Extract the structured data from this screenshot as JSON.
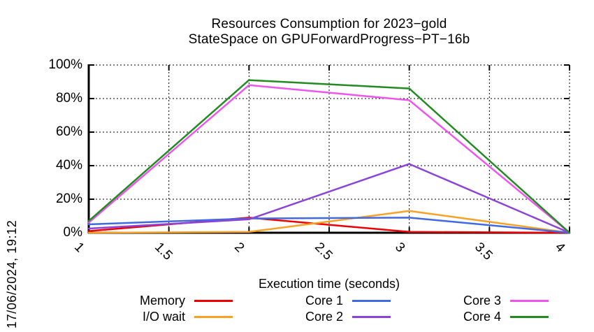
{
  "timestamp": "17/06/2024, 19:12",
  "title": {
    "line1": "Resources Consumption for 2023−gold",
    "line2": "StateSpace on GPUForwardProgress−PT−16b"
  },
  "chart_data": {
    "type": "line",
    "title": "Resources Consumption for 2023−gold StateSpace on GPUForwardProgress−PT−16b",
    "xlabel": "Execution time (seconds)",
    "ylabel": "",
    "xlim": [
      1,
      4
    ],
    "ylim": [
      0,
      100
    ],
    "grid": true,
    "legend_position": "bottom",
    "x": [
      1,
      2,
      3,
      4
    ],
    "x_ticks": [
      1,
      1.5,
      2,
      2.5,
      3,
      3.5,
      4
    ],
    "x_tick_labels": [
      "1",
      "1.5",
      "2",
      "2.5",
      "3",
      "3.5",
      "4"
    ],
    "y_ticks": [
      0,
      20,
      40,
      60,
      80,
      100
    ],
    "y_tick_labels": [
      "0%",
      "20%",
      "40%",
      "60%",
      "80%",
      "100%"
    ],
    "series": [
      {
        "name": "Memory",
        "color": "#ee0000",
        "values": [
          1,
          9,
          0.5,
          0
        ]
      },
      {
        "name": "I/O wait",
        "color": "#f7a227",
        "values": [
          0,
          0.5,
          13,
          0
        ]
      },
      {
        "name": "Core 1",
        "color": "#4169e1",
        "values": [
          5,
          8.5,
          9,
          0
        ]
      },
      {
        "name": "Core 2",
        "color": "#8b44d8",
        "values": [
          2.5,
          8,
          41,
          0
        ]
      },
      {
        "name": "Core 3",
        "color": "#ee55ee",
        "values": [
          6,
          88,
          79,
          0
        ]
      },
      {
        "name": "Core 4",
        "color": "#228b22",
        "values": [
          7,
          91,
          86,
          0
        ]
      }
    ],
    "legend_columns": [
      [
        "Memory",
        "I/O wait"
      ],
      [
        "Core 1",
        "Core 2"
      ],
      [
        "Core 3",
        "Core 4"
      ]
    ],
    "axis_color": "#000000",
    "grid_color": "#000000"
  }
}
